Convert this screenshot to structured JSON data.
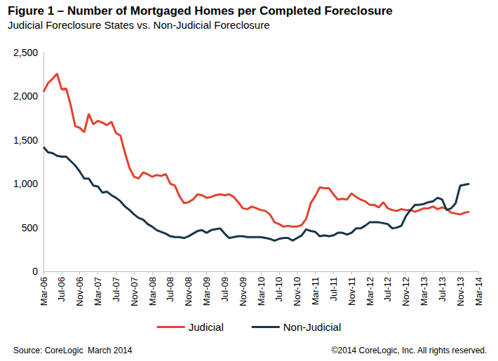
{
  "chart_data": {
    "type": "line",
    "title": "Figure 1 – Number of Mortgaged Homes per Completed Foreclosure",
    "subtitle": "Judicial Foreclosure States vs. Non-Judicial Foreclosure",
    "source": "Source: CoreLogic  March 2014",
    "copyright": "©2014 CoreLogic, Inc. All rights reserved.",
    "categories": [
      "Mar-06",
      null,
      null,
      null,
      "Jul-06",
      null,
      null,
      null,
      "Nov-06",
      null,
      null,
      null,
      "Mar-07",
      null,
      null,
      null,
      "Jul-07",
      null,
      null,
      null,
      "Nov-07",
      null,
      null,
      null,
      "Mar-08",
      null,
      null,
      null,
      "Jul-08",
      null,
      null,
      null,
      "Nov-08",
      null,
      null,
      null,
      "Mar-09",
      null,
      null,
      null,
      "Jul-09",
      null,
      null,
      null,
      "Nov-09",
      null,
      null,
      null,
      "Mar-10",
      null,
      null,
      null,
      "Jul-10",
      null,
      null,
      null,
      "Nov-10",
      null,
      null,
      null,
      "Mar-11",
      null,
      null,
      null,
      "Jul-11",
      null,
      null,
      null,
      "Nov-11",
      null,
      null,
      null,
      "Mar-12",
      null,
      null,
      null,
      "Jul-12",
      null,
      null,
      null,
      "Nov-12",
      null,
      null,
      null,
      "Mar-13",
      null,
      null,
      null,
      "Jul-13",
      null,
      null,
      null,
      "Nov-13",
      null,
      null,
      null,
      "Mar-14"
    ],
    "series": [
      {
        "name": "Judicial",
        "color": "#e5412d",
        "values": [
          2050,
          2150,
          2200,
          2260,
          2080,
          2090,
          1900,
          1660,
          1640,
          1590,
          1800,
          1680,
          1720,
          1700,
          1670,
          1710,
          1580,
          1550,
          1350,
          1180,
          1080,
          1060,
          1130,
          1110,
          1080,
          1100,
          1090,
          1110,
          1000,
          980,
          860,
          780,
          790,
          820,
          880,
          870,
          840,
          850,
          870,
          880,
          870,
          880,
          850,
          790,
          720,
          710,
          740,
          720,
          700,
          690,
          650,
          560,
          540,
          510,
          520,
          510,
          510,
          530,
          600,
          780,
          860,
          960,
          950,
          950,
          880,
          820,
          830,
          820,
          890,
          850,
          820,
          800,
          760,
          760,
          730,
          790,
          720,
          700,
          690,
          710,
          700,
          700,
          680,
          700,
          720,
          720,
          740,
          710,
          730,
          710,
          670,
          660,
          650,
          670,
          680,
          null,
          null
        ]
      },
      {
        "name": "Non-Judicial",
        "color": "#17364a",
        "values": [
          1420,
          1360,
          1350,
          1320,
          1310,
          1310,
          1260,
          1210,
          1140,
          1060,
          1060,
          980,
          970,
          900,
          910,
          870,
          840,
          800,
          740,
          700,
          650,
          610,
          590,
          540,
          510,
          470,
          450,
          430,
          400,
          390,
          390,
          380,
          400,
          430,
          460,
          470,
          440,
          470,
          480,
          490,
          430,
          380,
          390,
          400,
          400,
          390,
          390,
          390,
          390,
          380,
          370,
          350,
          370,
          380,
          380,
          350,
          380,
          410,
          480,
          460,
          450,
          400,
          410,
          400,
          410,
          440,
          440,
          420,
          440,
          490,
          490,
          520,
          560,
          560,
          560,
          550,
          540,
          490,
          500,
          520,
          630,
          700,
          760,
          760,
          770,
          790,
          800,
          840,
          820,
          700,
          720,
          780,
          980,
          990,
          1000,
          null,
          null
        ]
      }
    ],
    "ylim": [
      0,
      2500
    ],
    "yticks": [
      0,
      500,
      {
        "value": 1000,
        "label": "1,000"
      },
      {
        "value": 1500,
        "label": "1,500"
      },
      {
        "value": 2000,
        "label": "2,000"
      },
      {
        "value": 2500,
        "label": "2,500"
      }
    ],
    "grid": false,
    "legend": "bottom"
  }
}
